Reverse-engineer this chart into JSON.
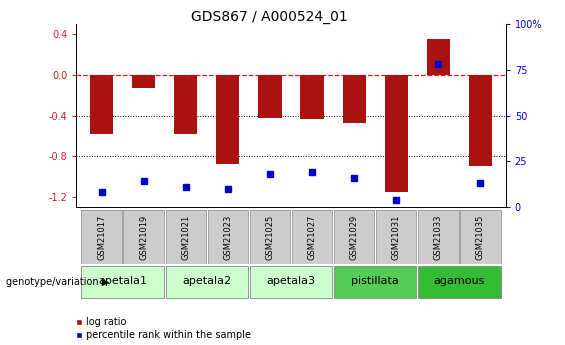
{
  "title": "GDS867 / A000524_01",
  "samples": [
    "GSM21017",
    "GSM21019",
    "GSM21021",
    "GSM21023",
    "GSM21025",
    "GSM21027",
    "GSM21029",
    "GSM21031",
    "GSM21033",
    "GSM21035"
  ],
  "log_ratio": [
    -0.58,
    -0.13,
    -0.58,
    -0.88,
    -0.42,
    -0.43,
    -0.47,
    -1.15,
    0.35,
    -0.9
  ],
  "percentile_rank": [
    8,
    14,
    11,
    10,
    18,
    19,
    16,
    4,
    78,
    13
  ],
  "ylim_left": [
    -1.3,
    0.5
  ],
  "groups": [
    {
      "label": "apetala1",
      "cols": [
        0,
        1
      ],
      "color": "#ccffcc"
    },
    {
      "label": "apetala2",
      "cols": [
        2,
        3
      ],
      "color": "#ccffcc"
    },
    {
      "label": "apetala3",
      "cols": [
        4,
        5
      ],
      "color": "#ccffcc"
    },
    {
      "label": "pistillata",
      "cols": [
        6,
        7
      ],
      "color": "#55cc55"
    },
    {
      "label": "agamous",
      "cols": [
        8,
        9
      ],
      "color": "#33bb33"
    }
  ],
  "bar_color": "#aa1111",
  "dot_color": "#0000cc",
  "zero_line_color": "#cc2222",
  "background_color": "#ffffff",
  "left_yticks": [
    0.4,
    0.0,
    -0.4,
    -0.8,
    -1.2
  ],
  "right_yticks_labels": [
    "100%",
    "75",
    "50",
    "25",
    "0"
  ],
  "right_yticks_data": [
    100,
    75,
    50,
    25,
    0
  ],
  "title_fontsize": 10,
  "tick_fontsize": 7,
  "sample_fontsize": 6,
  "group_fontsize": 8
}
